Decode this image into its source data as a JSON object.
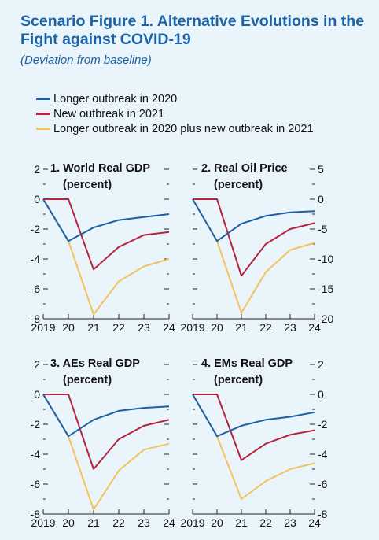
{
  "header": {
    "title": "Scenario Figure 1. Alternative Evolutions in the Fight against COVID-19",
    "subtitle": "(Deviation from baseline)"
  },
  "legend": [
    {
      "label": "Longer outbreak in 2020",
      "color": "#1f5fa3"
    },
    {
      "label": "New outbreak in 2021",
      "color": "#b5243f"
    },
    {
      "label": "Longer outbreak in 2020 plus new outbreak in 2021",
      "color": "#f2c35f"
    }
  ],
  "chart_data": [
    {
      "type": "line",
      "title": "1. World Real GDP",
      "subtitle": "(percent)",
      "x": [
        "2019",
        "20",
        "21",
        "22",
        "23",
        "24"
      ],
      "ylim": [
        -8,
        2
      ],
      "yticks": [
        "-8",
        "-6",
        "-4",
        "-2",
        "0",
        "2"
      ],
      "y_side": "left",
      "series": [
        {
          "name": "Longer outbreak in 2020",
          "values": [
            0,
            -2.8,
            -1.9,
            -1.4,
            -1.2,
            -1.0
          ]
        },
        {
          "name": "New outbreak in 2021",
          "values": [
            0,
            0,
            -4.7,
            -3.2,
            -2.4,
            -2.2
          ]
        },
        {
          "name": "Longer outbreak in 2020 plus new outbreak in 2021",
          "values": [
            0,
            -2.8,
            -7.7,
            -5.5,
            -4.5,
            -4.0
          ]
        }
      ]
    },
    {
      "type": "line",
      "title": "2. Real Oil Price",
      "subtitle": "(percent)",
      "x": [
        "2019",
        "20",
        "21",
        "22",
        "23",
        "24"
      ],
      "ylim": [
        -20,
        5
      ],
      "yticks": [
        "-20",
        "-15",
        "-10",
        "-5",
        "0",
        "5"
      ],
      "y_side": "right",
      "series": [
        {
          "name": "Longer outbreak in 2020",
          "values": [
            0,
            -7.0,
            -4.1,
            -2.8,
            -2.2,
            -2.0
          ]
        },
        {
          "name": "New outbreak in 2021",
          "values": [
            0,
            0,
            -12.8,
            -7.5,
            -5.0,
            -4.0
          ]
        },
        {
          "name": "Longer outbreak in 2020 plus new outbreak in 2021",
          "values": [
            0,
            -7.0,
            -19.0,
            -12.2,
            -8.5,
            -7.3
          ]
        }
      ]
    },
    {
      "type": "line",
      "title": "3. AEs Real GDP",
      "subtitle": "(percent)",
      "x": [
        "2019",
        "20",
        "21",
        "22",
        "23",
        "24"
      ],
      "ylim": [
        -8,
        2
      ],
      "yticks": [
        "-8",
        "-6",
        "-4",
        "-2",
        "0",
        "2"
      ],
      "y_side": "left",
      "series": [
        {
          "name": "Longer outbreak in 2020",
          "values": [
            0,
            -2.8,
            -1.7,
            -1.1,
            -0.9,
            -0.8
          ]
        },
        {
          "name": "New outbreak in 2021",
          "values": [
            0,
            0,
            -5.0,
            -3.0,
            -2.1,
            -1.7
          ]
        },
        {
          "name": "Longer outbreak in 2020 plus new outbreak in 2021",
          "values": [
            0,
            -2.8,
            -7.7,
            -5.1,
            -3.7,
            -3.3
          ]
        }
      ]
    },
    {
      "type": "line",
      "title": "4. EMs Real GDP",
      "subtitle": "(percent)",
      "x": [
        "2019",
        "20",
        "21",
        "22",
        "23",
        "24"
      ],
      "ylim": [
        -8,
        2
      ],
      "yticks": [
        "-8",
        "-6",
        "-4",
        "-2",
        "0",
        "2"
      ],
      "y_side": "right",
      "series": [
        {
          "name": "Longer outbreak in 2020",
          "values": [
            0,
            -2.8,
            -2.1,
            -1.7,
            -1.5,
            -1.2
          ]
        },
        {
          "name": "New outbreak in 2021",
          "values": [
            0,
            0,
            -4.4,
            -3.3,
            -2.7,
            -2.4
          ]
        },
        {
          "name": "Longer outbreak in 2020 plus new outbreak in 2021",
          "values": [
            0,
            -2.8,
            -7.0,
            -5.8,
            -5.0,
            -4.6
          ]
        }
      ]
    }
  ]
}
